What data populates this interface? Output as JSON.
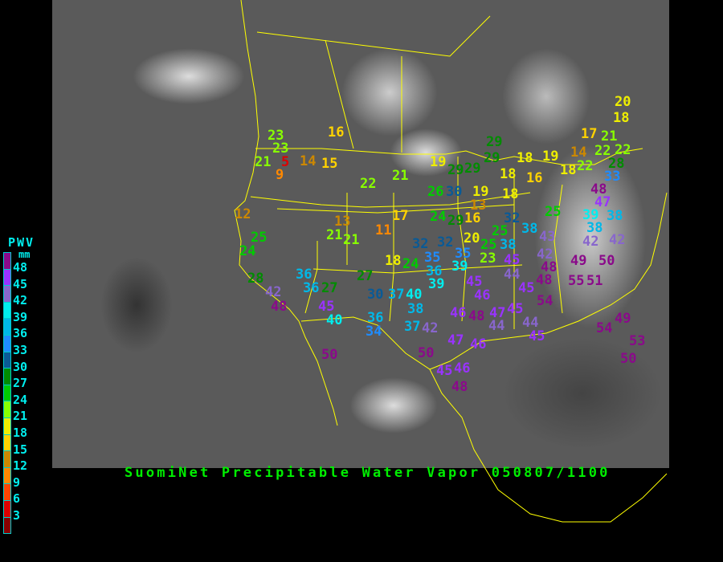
{
  "title": "SuomiNet Precipitable Water Vapor 050807/1100",
  "legend": {
    "title": "PWV",
    "unit": "mm",
    "labels": [
      "48",
      "45",
      "42",
      "39",
      "36",
      "33",
      "30",
      "27",
      "24",
      "21",
      "18",
      "15",
      "12",
      "9",
      "6",
      "3"
    ],
    "colors": [
      "#8a0a8a",
      "#9933ff",
      "#8866cc",
      "#00eeee",
      "#00b8e8",
      "#1e8cff",
      "#0a5a96",
      "#008c00",
      "#00cc00",
      "#88ff00",
      "#eeee00",
      "#ffd200",
      "#cc8800",
      "#ff8800",
      "#ff4400",
      "#dd0000",
      "#880000"
    ],
    "thresholds": [
      48,
      45,
      42,
      39,
      36,
      33,
      30,
      27,
      24,
      21,
      18,
      15,
      12,
      9,
      6,
      3,
      0
    ]
  },
  "stations": [
    {
      "value": "23"
    },
    {
      "value": "23"
    },
    {
      "value": "21"
    },
    {
      "value": "5"
    },
    {
      "value": "9"
    },
    {
      "value": "14"
    },
    {
      "value": "15"
    },
    {
      "value": "16"
    },
    {
      "value": "22"
    },
    {
      "value": "21"
    },
    {
      "value": "19"
    },
    {
      "value": "26"
    },
    {
      "value": "30"
    },
    {
      "value": "12"
    },
    {
      "value": "13"
    },
    {
      "value": "17"
    },
    {
      "value": "21"
    },
    {
      "value": "21"
    },
    {
      "value": "11"
    },
    {
      "value": "24"
    },
    {
      "value": "29"
    },
    {
      "value": "16"
    },
    {
      "value": "13"
    },
    {
      "value": "25"
    },
    {
      "value": "24"
    },
    {
      "value": "32"
    },
    {
      "value": "32"
    },
    {
      "value": "18"
    },
    {
      "value": "24"
    },
    {
      "value": "35"
    },
    {
      "value": "36"
    },
    {
      "value": "28"
    },
    {
      "value": "36"
    },
    {
      "value": "36"
    },
    {
      "value": "27"
    },
    {
      "value": "27"
    },
    {
      "value": "39"
    },
    {
      "value": "42"
    },
    {
      "value": "48"
    },
    {
      "value": "30"
    },
    {
      "value": "37"
    },
    {
      "value": "40"
    },
    {
      "value": "45"
    },
    {
      "value": "40"
    },
    {
      "value": "38"
    },
    {
      "value": "36"
    },
    {
      "value": "34"
    },
    {
      "value": "37"
    },
    {
      "value": "42"
    },
    {
      "value": "50"
    },
    {
      "value": "50"
    },
    {
      "value": "47"
    },
    {
      "value": "46"
    },
    {
      "value": "45"
    },
    {
      "value": "46"
    },
    {
      "value": "48"
    },
    {
      "value": "46"
    },
    {
      "value": "48"
    },
    {
      "value": "47"
    },
    {
      "value": "44"
    },
    {
      "value": "45"
    },
    {
      "value": "46"
    },
    {
      "value": "44"
    },
    {
      "value": "45"
    },
    {
      "value": "48"
    },
    {
      "value": "45"
    },
    {
      "value": "44"
    },
    {
      "value": "45"
    },
    {
      "value": "54"
    },
    {
      "value": "55"
    },
    {
      "value": "51"
    },
    {
      "value": "49"
    },
    {
      "value": "54"
    },
    {
      "value": "53"
    },
    {
      "value": "50"
    },
    {
      "value": "29"
    },
    {
      "value": "29"
    },
    {
      "value": "29"
    },
    {
      "value": "29"
    },
    {
      "value": "18"
    },
    {
      "value": "19"
    },
    {
      "value": "14"
    },
    {
      "value": "18"
    },
    {
      "value": "22"
    },
    {
      "value": "22"
    },
    {
      "value": "22"
    },
    {
      "value": "21"
    },
    {
      "value": "17"
    },
    {
      "value": "20"
    },
    {
      "value": "18"
    },
    {
      "value": "18"
    },
    {
      "value": "16"
    },
    {
      "value": "18"
    },
    {
      "value": "19"
    },
    {
      "value": "28"
    },
    {
      "value": "33"
    },
    {
      "value": "48"
    },
    {
      "value": "47"
    },
    {
      "value": "25"
    },
    {
      "value": "39"
    },
    {
      "value": "38"
    },
    {
      "value": "38"
    },
    {
      "value": "32"
    },
    {
      "value": "38"
    },
    {
      "value": "25"
    },
    {
      "value": "25"
    },
    {
      "value": "38"
    },
    {
      "value": "20"
    },
    {
      "value": "23"
    },
    {
      "value": "35"
    },
    {
      "value": "39"
    },
    {
      "value": "43"
    },
    {
      "value": "42"
    },
    {
      "value": "42"
    },
    {
      "value": "45"
    },
    {
      "value": "42"
    },
    {
      "value": "49"
    },
    {
      "value": "50"
    },
    {
      "value": "48"
    }
  ]
}
